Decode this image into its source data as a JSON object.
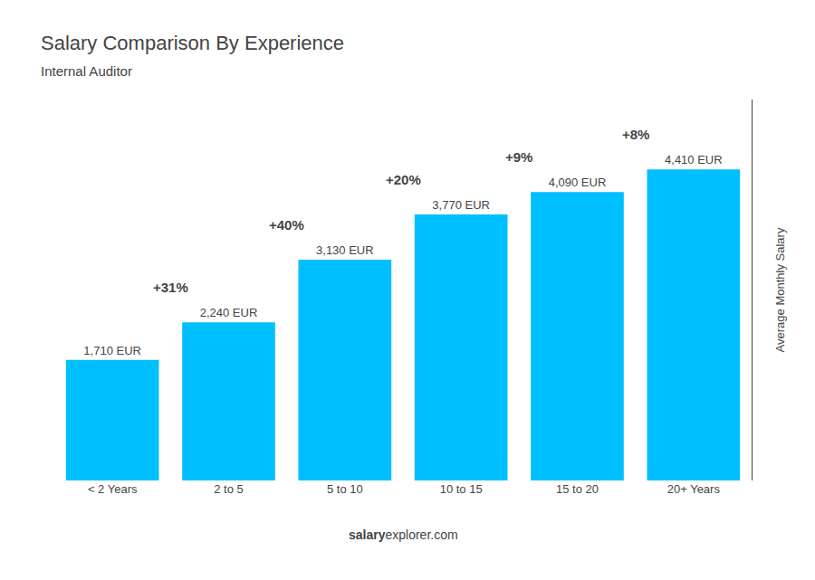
{
  "chart_data": {
    "type": "bar",
    "title": "Salary Comparison By Experience",
    "subtitle": "Internal Auditor",
    "categories": [
      "< 2 Years",
      "2 to 5",
      "5 to 10",
      "10 to 15",
      "15 to 20",
      "20+ Years"
    ],
    "values": [
      1710,
      2240,
      3130,
      3770,
      4090,
      4410
    ],
    "value_labels": [
      "1,710 EUR",
      "2,240 EUR",
      "3,130 EUR",
      "3,770 EUR",
      "4,090 EUR",
      "4,410 EUR"
    ],
    "data_labels": true,
    "annotations": [
      "+31%",
      "+40%",
      "+20%",
      "+9%",
      "+8%"
    ],
    "ylabel": "Average Monthly Salary",
    "footer": [
      "salary",
      "explorer.com"
    ],
    "color": "#00BFFF",
    "ylim": [
      0,
      5400
    ],
    "tick_labels": "x",
    "grid": false
  }
}
